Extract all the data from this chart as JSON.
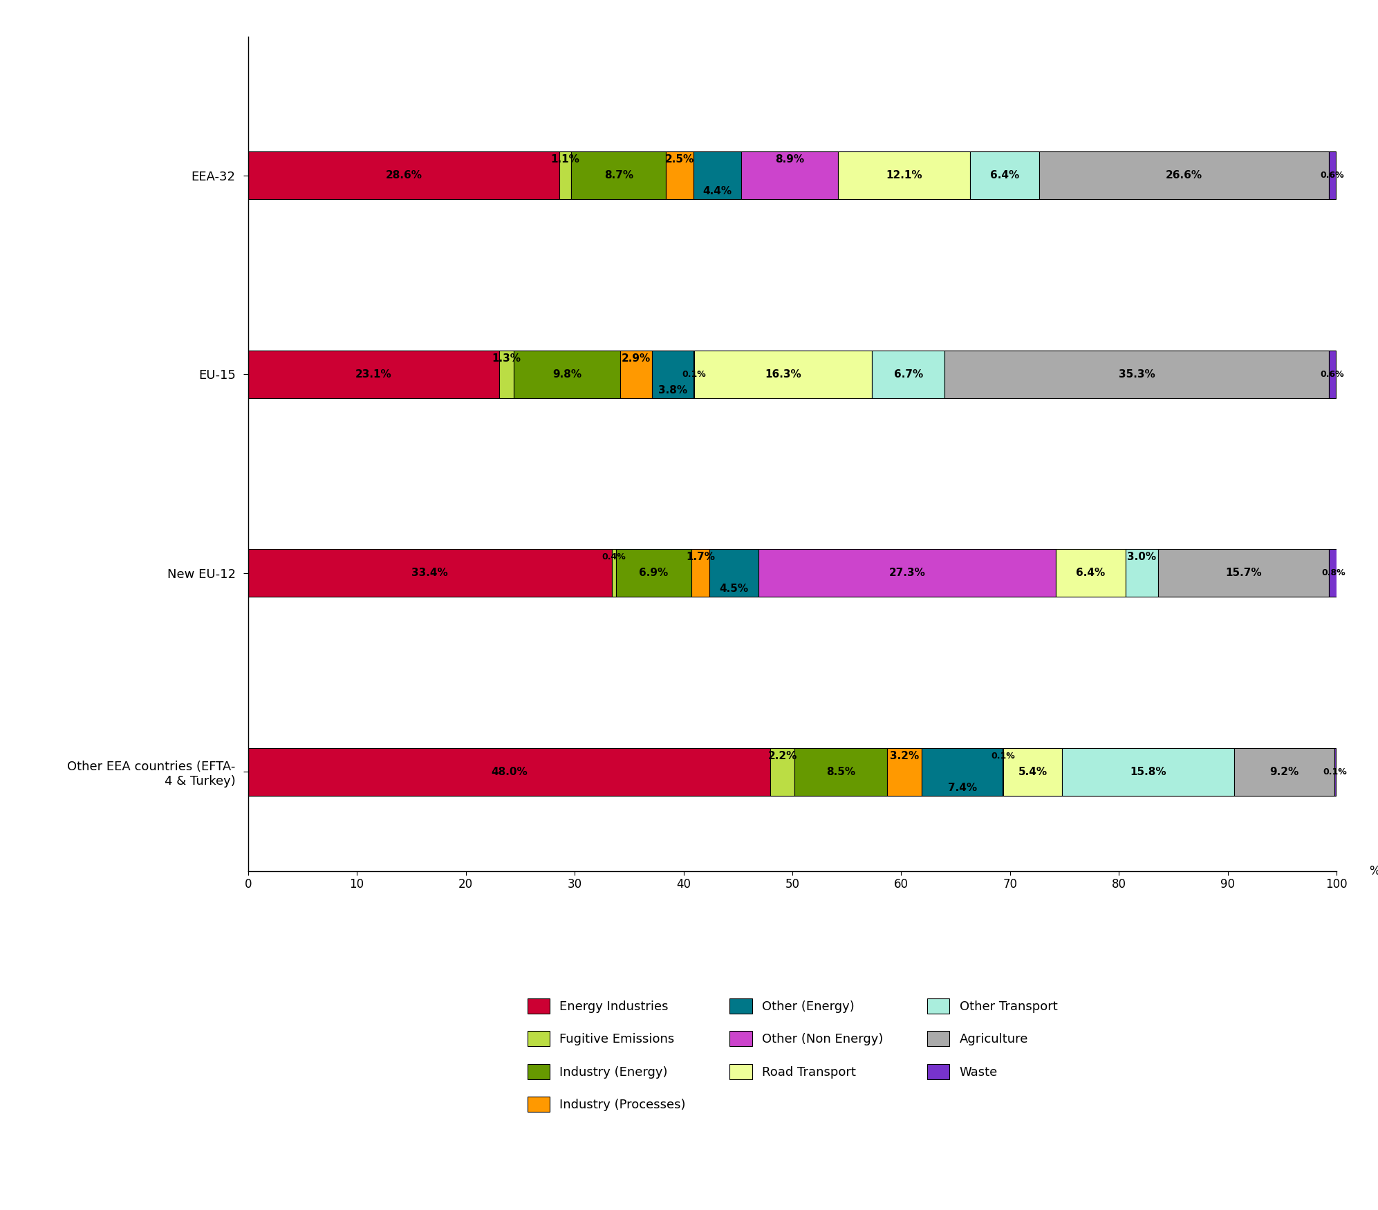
{
  "row_labels": [
    "EEA-32",
    "EU-15",
    "New EU-12",
    "Other EEA countries (EFTA-\n4 & Turkey)"
  ],
  "segment_names": [
    "Energy Industries",
    "Fugitive Emissions",
    "Industry (Energy)",
    "Industry (Processes)",
    "Other (Energy)",
    "Other (Non Energy)",
    "Road Transport",
    "Other Transport",
    "Agriculture",
    "Waste"
  ],
  "segment_colors": [
    "#CC0033",
    "#BBDD44",
    "#669900",
    "#FF9900",
    "#007788",
    "#CC44CC",
    "#EEFF99",
    "#AAEEDD",
    "#AAAAAA",
    "#7733CC"
  ],
  "row_data": [
    [
      28.6,
      1.1,
      8.7,
      2.5,
      4.4,
      8.9,
      12.1,
      6.4,
      26.6,
      0.6
    ],
    [
      23.1,
      1.3,
      9.8,
      2.9,
      3.8,
      0.1,
      16.3,
      6.7,
      35.3,
      0.6
    ],
    [
      33.4,
      0.4,
      6.9,
      1.7,
      4.5,
      27.3,
      6.4,
      3.0,
      15.7,
      0.8
    ],
    [
      48.0,
      2.2,
      8.5,
      3.2,
      7.4,
      0.1,
      5.4,
      15.8,
      9.2,
      0.1
    ]
  ],
  "label_texts": [
    [
      "28.6%",
      "1.1%",
      "8.7%",
      "2.5%",
      "4.4%",
      "8.9%",
      "12.1%",
      "6.4%",
      "26.6%",
      "0.6%"
    ],
    [
      "23.1%",
      "1.3%",
      "9.8%",
      "2.9%",
      "3.8%",
      "0.1%",
      "16.3%",
      "6.7%",
      "35.3%",
      "0.6%"
    ],
    [
      "33.4%",
      "0.4%",
      "6.9%",
      "1.7%",
      "4.5%",
      "27.3%",
      "6.4%",
      "3.0%",
      "15.7%",
      "0.8%"
    ],
    [
      "48.0%",
      "2.2%",
      "8.5%",
      "3.2%",
      "7.4%",
      "0.1%",
      "5.4%",
      "15.8%",
      "9.2%",
      "0.1%"
    ]
  ],
  "label_voffsets": [
    [
      0,
      1,
      0,
      1,
      -1,
      1,
      0,
      0,
      0,
      0
    ],
    [
      0,
      1,
      0,
      1,
      -1,
      0,
      0,
      0,
      0,
      0
    ],
    [
      0,
      1,
      0,
      1,
      -1,
      0,
      0,
      1,
      0,
      0
    ],
    [
      0,
      1,
      0,
      1,
      -1,
      1,
      0,
      0,
      0,
      0
    ]
  ],
  "legend_items": [
    {
      "label": "Energy Industries",
      "color": "#CC0033"
    },
    {
      "label": "Fugitive Emissions",
      "color": "#BBDD44"
    },
    {
      "label": "Industry (Energy)",
      "color": "#669900"
    },
    {
      "label": "Industry (Processes)",
      "color": "#FF9900"
    },
    {
      "label": "Other (Energy)",
      "color": "#007788"
    },
    {
      "label": "Other (Non Energy)",
      "color": "#CC44CC"
    },
    {
      "label": "Road Transport",
      "color": "#EEFF99"
    },
    {
      "label": "Other Transport",
      "color": "#AAEEDD"
    },
    {
      "label": "Agriculture",
      "color": "#AAAAAA"
    },
    {
      "label": "Waste",
      "color": "#7733CC"
    }
  ]
}
